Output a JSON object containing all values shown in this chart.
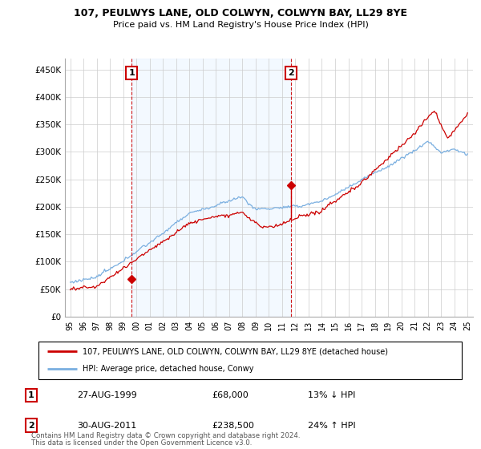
{
  "title": "107, PEULWYS LANE, OLD COLWYN, COLWYN BAY, LL29 8YE",
  "subtitle": "Price paid vs. HM Land Registry's House Price Index (HPI)",
  "ylabel_ticks": [
    "£0",
    "£50K",
    "£100K",
    "£150K",
    "£200K",
    "£250K",
    "£300K",
    "£350K",
    "£400K",
    "£450K"
  ],
  "ytick_values": [
    0,
    50000,
    100000,
    150000,
    200000,
    250000,
    300000,
    350000,
    400000,
    450000
  ],
  "ylim": [
    0,
    470000
  ],
  "xlim_start": 1994.6,
  "xlim_end": 2025.4,
  "sale1_x": 1999.65,
  "sale1_y": 68000,
  "sale1_label": "1",
  "sale1_date": "27-AUG-1999",
  "sale1_price": "£68,000",
  "sale1_hpi": "13% ↓ HPI",
  "sale2_x": 2011.65,
  "sale2_y": 238500,
  "sale2_label": "2",
  "sale2_date": "30-AUG-2011",
  "sale2_price": "£238,500",
  "sale2_hpi": "24% ↑ HPI",
  "legend_line1": "107, PEULWYS LANE, OLD COLWYN, COLWYN BAY, LL29 8YE (detached house)",
  "legend_line2": "HPI: Average price, detached house, Conwy",
  "footer1": "Contains HM Land Registry data © Crown copyright and database right 2024.",
  "footer2": "This data is licensed under the Open Government Licence v3.0.",
  "red_color": "#cc0000",
  "blue_color": "#7aafe0",
  "shade_color": "#ddeeff",
  "background_color": "#ffffff",
  "grid_color": "#cccccc"
}
